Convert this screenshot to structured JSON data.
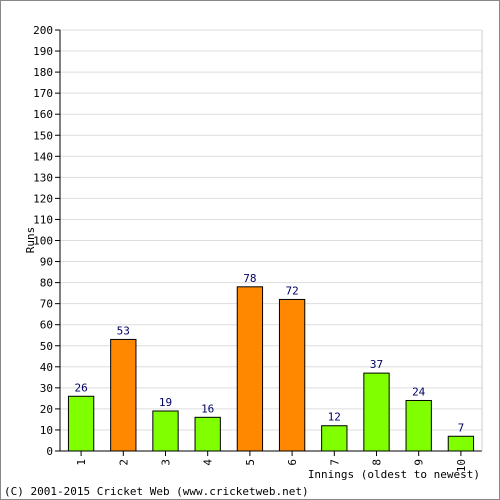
{
  "chart_data": {
    "type": "bar",
    "categories": [
      "1",
      "2",
      "3",
      "4",
      "5",
      "6",
      "7",
      "8",
      "9",
      "10"
    ],
    "values": [
      26,
      53,
      19,
      16,
      78,
      72,
      12,
      37,
      24,
      7
    ],
    "bar_colors": [
      "#80ff00",
      "#ff8800",
      "#80ff00",
      "#80ff00",
      "#ff8800",
      "#ff8800",
      "#80ff00",
      "#80ff00",
      "#80ff00",
      "#80ff00"
    ],
    "ylabel": "Runs",
    "xlabel": "Innings (oldest to newest)",
    "ylim": [
      0,
      200
    ],
    "ytick_step": 10,
    "grid": true
  },
  "footer": {
    "copyright": "(C) 2001-2015 Cricket Web (www.cricketweb.net)"
  },
  "colors": {
    "grid": "#dddddd",
    "frame_border": "#888888",
    "data_label": "#000066"
  }
}
